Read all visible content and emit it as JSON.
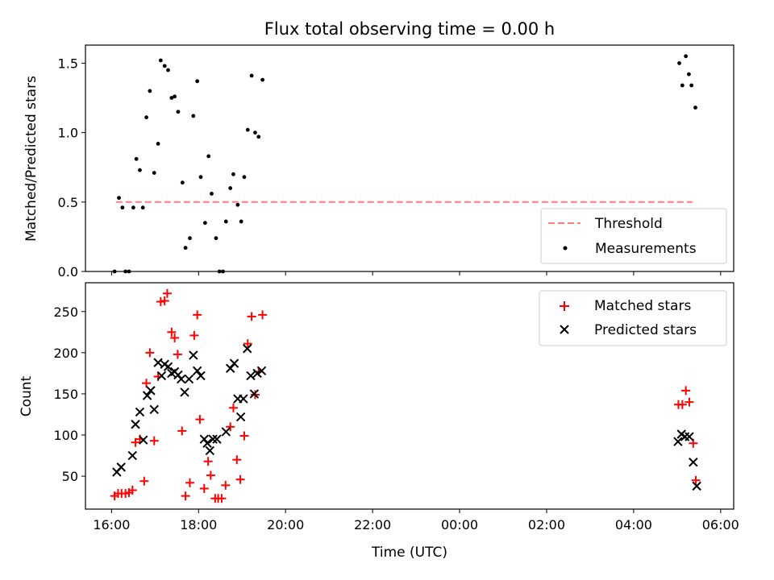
{
  "chart_data": [
    {
      "type": "scatter",
      "title": "Flux total observing time = 0.00 h",
      "xlabel": "",
      "ylabel": "Matched/Predicted stars",
      "xlim": [
        -0.6,
        14.3
      ],
      "ylim": [
        0.0,
        1.63
      ],
      "x_tick_values": [
        0,
        2,
        4,
        6,
        8,
        10,
        12,
        14
      ],
      "yticks": [
        0.0,
        0.5,
        1.0,
        1.5
      ],
      "ytick_labels": [
        "0.0",
        "0.5",
        "1.0",
        "1.5"
      ],
      "legend": "lower-right",
      "threshold": {
        "name": "Threshold",
        "value": 0.5,
        "x_range": [
          0.1,
          13.35
        ],
        "color": "#ff7f7f"
      },
      "series": [
        {
          "name": "Measurements",
          "color": "#000000",
          "marker": "dot",
          "points": [
            [
              0.07,
              0.0
            ],
            [
              0.17,
              0.53
            ],
            [
              0.25,
              0.46
            ],
            [
              0.32,
              0.0
            ],
            [
              0.4,
              0.0
            ],
            [
              0.5,
              0.46
            ],
            [
              0.57,
              0.81
            ],
            [
              0.65,
              0.73
            ],
            [
              0.72,
              0.46
            ],
            [
              0.8,
              1.11
            ],
            [
              0.88,
              1.3
            ],
            [
              0.98,
              0.71
            ],
            [
              1.07,
              0.92
            ],
            [
              1.13,
              1.52
            ],
            [
              1.22,
              1.48
            ],
            [
              1.3,
              1.45
            ],
            [
              1.38,
              1.25
            ],
            [
              1.45,
              1.26
            ],
            [
              1.53,
              1.15
            ],
            [
              1.63,
              0.64
            ],
            [
              1.7,
              0.17
            ],
            [
              1.8,
              0.24
            ],
            [
              1.88,
              1.12
            ],
            [
              1.97,
              1.37
            ],
            [
              2.05,
              0.68
            ],
            [
              2.15,
              0.35
            ],
            [
              2.23,
              0.83
            ],
            [
              2.3,
              0.56
            ],
            [
              2.4,
              0.24
            ],
            [
              2.48,
              0.0
            ],
            [
              2.56,
              0.0
            ],
            [
              2.63,
              0.36
            ],
            [
              2.73,
              0.6
            ],
            [
              2.8,
              0.7
            ],
            [
              2.9,
              0.48
            ],
            [
              2.98,
              0.36
            ],
            [
              3.05,
              0.68
            ],
            [
              3.13,
              1.02
            ],
            [
              3.22,
              1.41
            ],
            [
              3.3,
              1.0
            ],
            [
              3.38,
              0.97
            ],
            [
              3.47,
              1.38
            ],
            [
              13.05,
              1.5
            ],
            [
              13.12,
              1.34
            ],
            [
              13.2,
              1.55
            ],
            [
              13.27,
              1.42
            ],
            [
              13.33,
              1.34
            ],
            [
              13.42,
              1.18
            ]
          ]
        }
      ]
    },
    {
      "type": "scatter",
      "title": "",
      "xlabel": "Time (UTC)",
      "ylabel": "Count",
      "xlim": [
        -0.6,
        14.3
      ],
      "ylim": [
        10,
        285
      ],
      "x_tick_values": [
        0,
        2,
        4,
        6,
        8,
        10,
        12,
        14
      ],
      "xtick_labels": [
        "16:00",
        "18:00",
        "20:00",
        "22:00",
        "00:00",
        "02:00",
        "04:00",
        "06:00"
      ],
      "yticks": [
        50,
        100,
        150,
        200,
        250
      ],
      "ytick_labels": [
        "50",
        "100",
        "150",
        "200",
        "250"
      ],
      "legend": "top-right",
      "series": [
        {
          "name": "Matched stars",
          "color": "#ff0000",
          "marker": "plus",
          "points": [
            [
              0.07,
              26
            ],
            [
              0.15,
              29
            ],
            [
              0.23,
              29
            ],
            [
              0.32,
              29
            ],
            [
              0.4,
              30
            ],
            [
              0.48,
              33
            ],
            [
              0.55,
              91
            ],
            [
              0.65,
              95
            ],
            [
              0.75,
              44
            ],
            [
              0.8,
              163
            ],
            [
              0.88,
              200
            ],
            [
              0.98,
              93
            ],
            [
              1.07,
              171
            ],
            [
              1.13,
              262
            ],
            [
              1.22,
              263
            ],
            [
              1.28,
              272
            ],
            [
              1.38,
              225
            ],
            [
              1.45,
              218
            ],
            [
              1.52,
              198
            ],
            [
              1.62,
              105
            ],
            [
              1.7,
              26
            ],
            [
              1.8,
              42
            ],
            [
              1.9,
              221
            ],
            [
              1.97,
              246
            ],
            [
              2.03,
              119
            ],
            [
              2.13,
              35
            ],
            [
              2.22,
              68
            ],
            [
              2.28,
              51
            ],
            [
              2.38,
              23
            ],
            [
              2.45,
              23
            ],
            [
              2.53,
              23
            ],
            [
              2.62,
              39
            ],
            [
              2.73,
              110
            ],
            [
              2.8,
              133
            ],
            [
              2.88,
              70
            ],
            [
              2.96,
              46
            ],
            [
              3.05,
              99
            ],
            [
              3.13,
              211
            ],
            [
              3.22,
              244
            ],
            [
              3.3,
              149
            ],
            [
              3.38,
              177
            ],
            [
              3.47,
              246
            ],
            [
              13.03,
              137
            ],
            [
              13.12,
              137
            ],
            [
              13.2,
              154
            ],
            [
              13.28,
              140
            ],
            [
              13.37,
              90
            ],
            [
              13.43,
              45
            ]
          ]
        },
        {
          "name": "Predicted stars",
          "color": "#000000",
          "marker": "x",
          "points": [
            [
              0.12,
              55
            ],
            [
              0.22,
              61
            ],
            [
              0.48,
              75
            ],
            [
              0.55,
              113
            ],
            [
              0.65,
              128
            ],
            [
              0.73,
              94
            ],
            [
              0.82,
              148
            ],
            [
              0.9,
              154
            ],
            [
              0.98,
              131
            ],
            [
              1.07,
              188
            ],
            [
              1.15,
              172
            ],
            [
              1.22,
              186
            ],
            [
              1.3,
              183
            ],
            [
              1.38,
              175
            ],
            [
              1.45,
              177
            ],
            [
              1.53,
              173
            ],
            [
              1.6,
              168
            ],
            [
              1.68,
              152
            ],
            [
              1.78,
              168
            ],
            [
              1.88,
              197
            ],
            [
              1.97,
              178
            ],
            [
              2.05,
              172
            ],
            [
              2.13,
              95
            ],
            [
              2.2,
              90
            ],
            [
              2.26,
              81
            ],
            [
              2.33,
              95
            ],
            [
              2.42,
              95
            ],
            [
              2.63,
              104
            ],
            [
              2.73,
              181
            ],
            [
              2.82,
              187
            ],
            [
              2.9,
              144
            ],
            [
              2.97,
              122
            ],
            [
              3.03,
              144
            ],
            [
              3.12,
              205
            ],
            [
              3.2,
              172
            ],
            [
              3.28,
              150
            ],
            [
              3.35,
              175
            ],
            [
              3.45,
              178
            ],
            [
              13.02,
              92
            ],
            [
              13.1,
              101
            ],
            [
              13.18,
              98
            ],
            [
              13.28,
              98
            ],
            [
              13.37,
              67
            ],
            [
              13.45,
              38
            ]
          ]
        }
      ]
    }
  ]
}
